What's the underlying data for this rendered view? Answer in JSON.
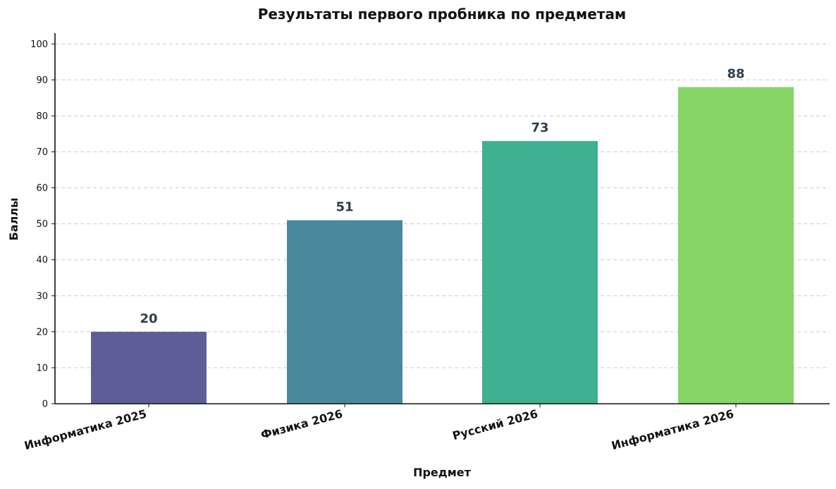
{
  "chart_data": {
    "type": "bar",
    "title": "Результаты первого пробника по предметам",
    "xlabel": "Предмет",
    "ylabel": "Баллы",
    "categories": [
      "Информатика 2025",
      "Физика 2026",
      "Русский 2026",
      "Информатика 2026"
    ],
    "values": [
      20,
      51,
      73,
      88
    ],
    "colors": [
      "#4b4d8c",
      "#347c92",
      "#2aa884",
      "#7acf57"
    ],
    "ylim": [
      0,
      100
    ],
    "yticks": [
      0,
      10,
      20,
      30,
      40,
      50,
      60,
      70,
      80,
      90,
      100
    ],
    "grid": "horizontal-dashed",
    "legend": "none"
  }
}
